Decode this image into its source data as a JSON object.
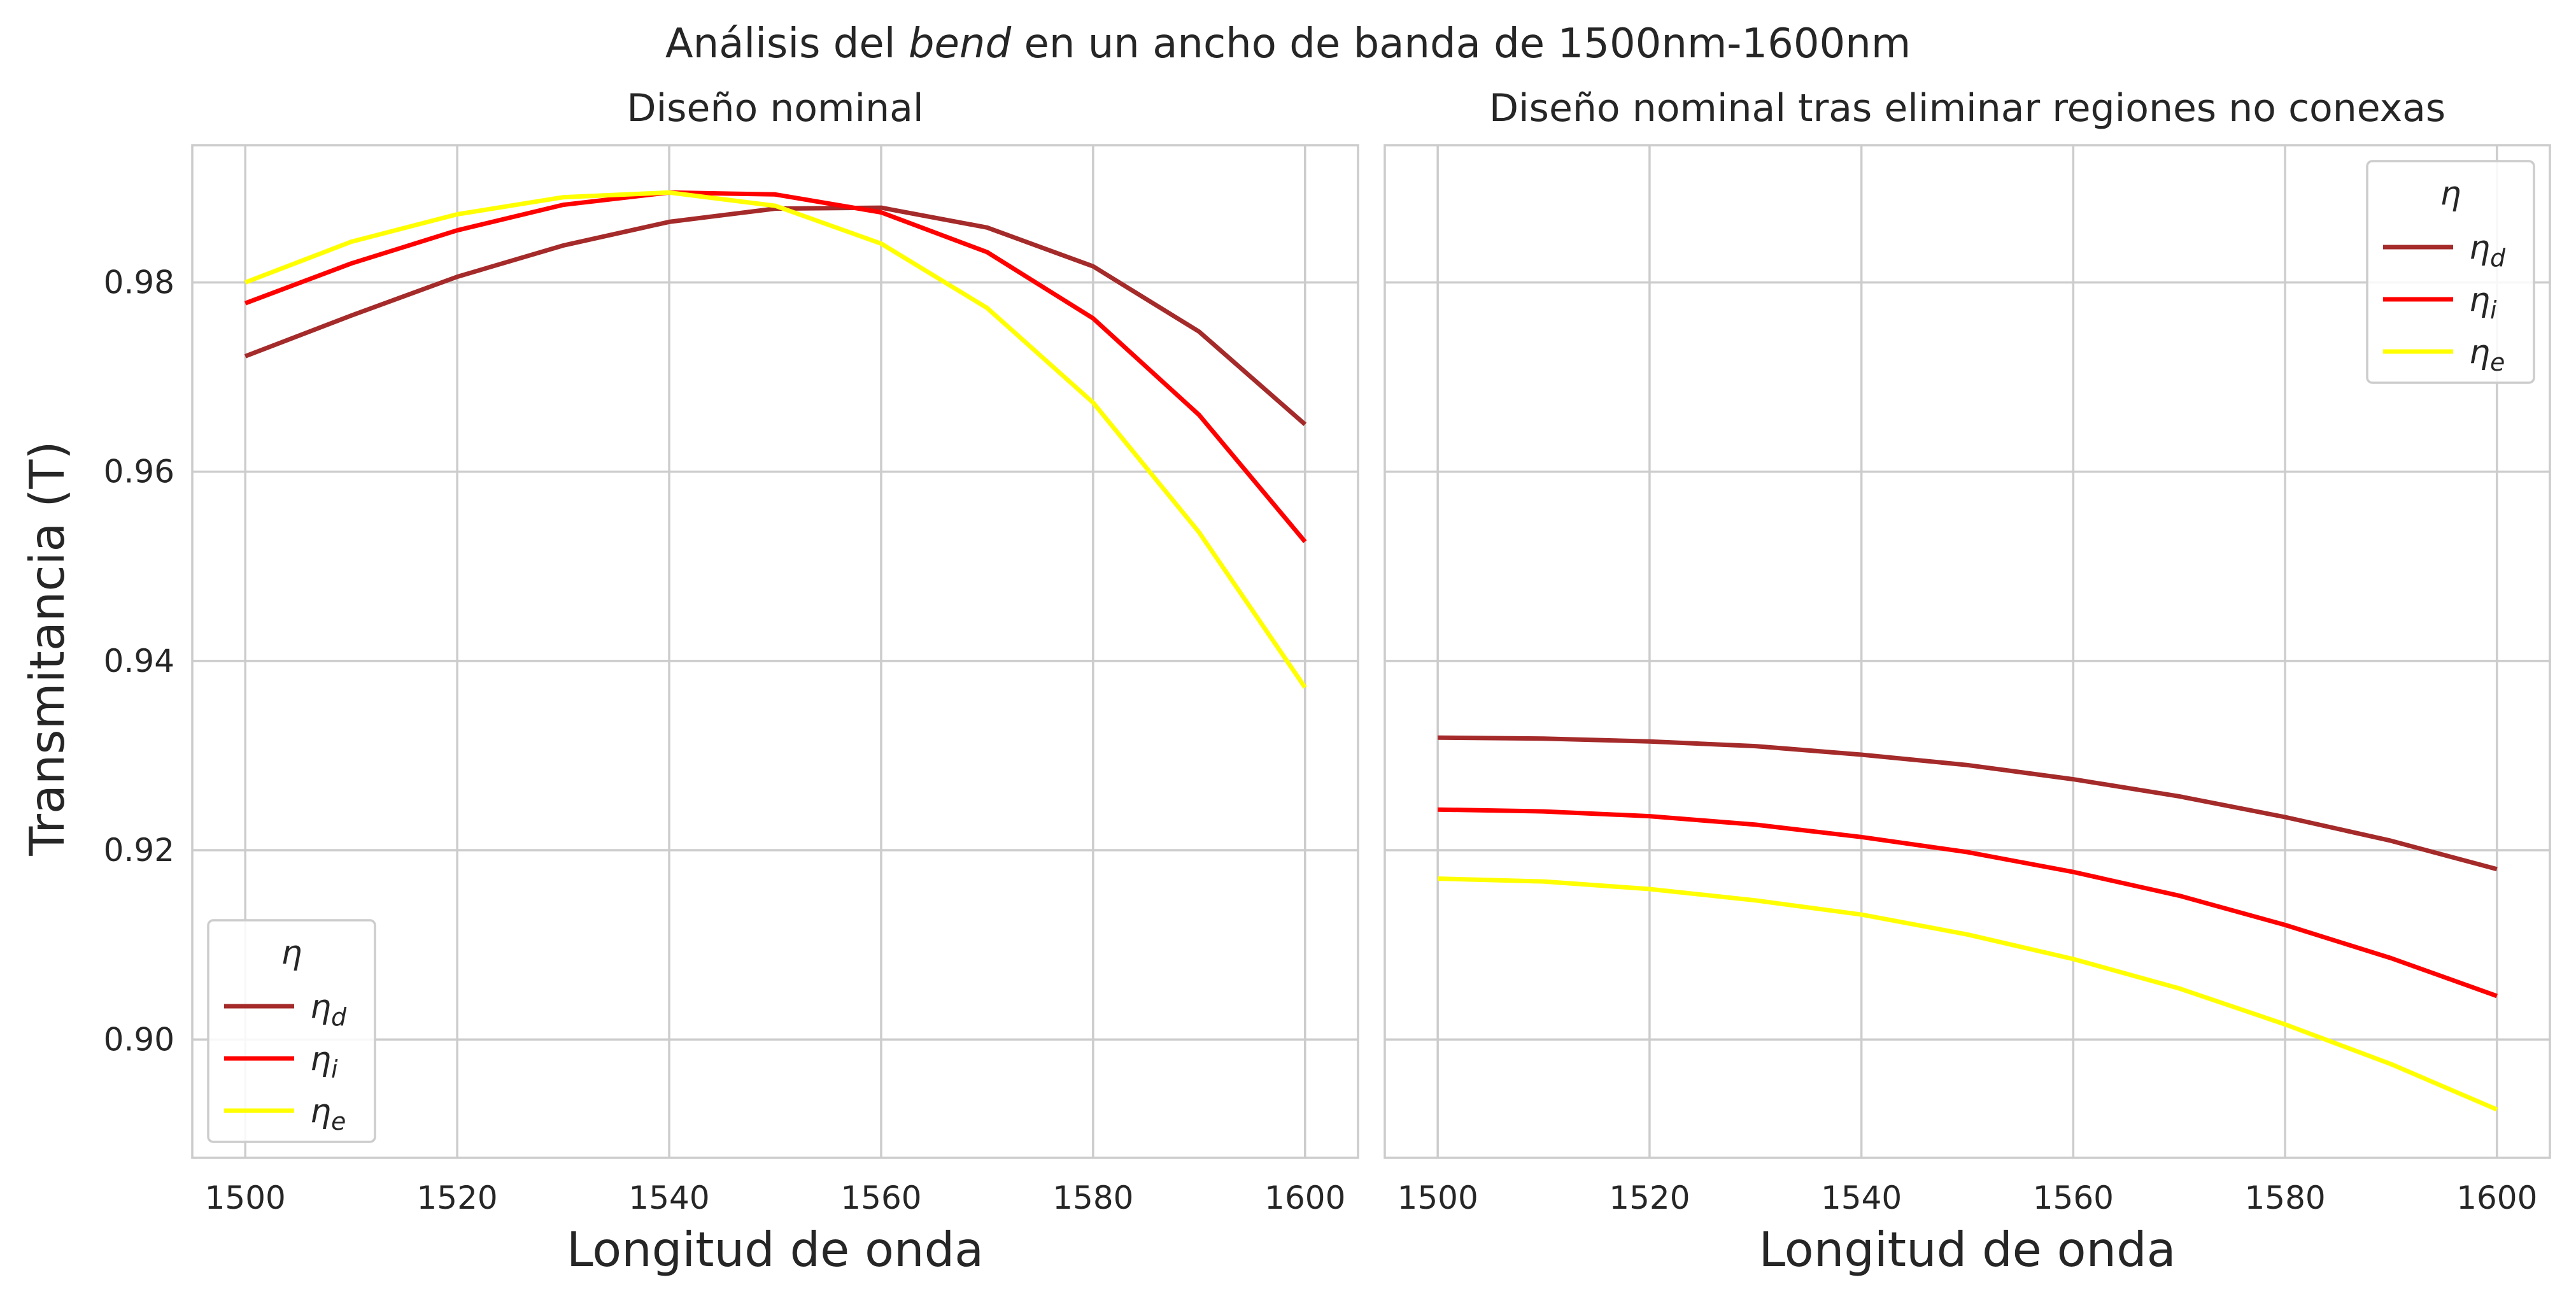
{
  "figure": {
    "title_prefix": "Análisis del ",
    "title_italic": "bend",
    "title_suffix": " en un ancho de banda de 1500nm-1600nm",
    "ylabel": "Transmitancia (T)"
  },
  "chart_data": [
    {
      "type": "line",
      "title": "Diseño nominal",
      "xlabel": "Longitud de onda",
      "ylabel": "Transmitancia (T)",
      "xlim": [
        1495,
        1605
      ],
      "ylim": [
        0.8875,
        0.9945
      ],
      "xticks": [
        1500,
        1520,
        1540,
        1560,
        1580,
        1600
      ],
      "yticks": [
        0.9,
        0.92,
        0.94,
        0.96,
        0.98
      ],
      "ytick_labels": [
        "0.90",
        "0.92",
        "0.94",
        "0.96",
        "0.98"
      ],
      "grid": true,
      "legend": {
        "title": "η",
        "placement": "lower-left"
      },
      "x": [
        1500,
        1510,
        1520,
        1530,
        1540,
        1550,
        1560,
        1570,
        1580,
        1590,
        1600
      ],
      "series": [
        {
          "name": "η",
          "sub": "d",
          "color": "#a52a2a",
          "values": [
            0.9722,
            0.9765,
            0.9806,
            0.9839,
            0.9864,
            0.9878,
            0.9879,
            0.9858,
            0.9817,
            0.9748,
            0.965
          ]
        },
        {
          "name": "η",
          "sub": "i",
          "color": "#ff0000",
          "values": [
            0.9778,
            0.982,
            0.9855,
            0.9882,
            0.9895,
            0.9893,
            0.9874,
            0.9832,
            0.9762,
            0.966,
            0.9526
          ]
        },
        {
          "name": "η",
          "sub": "e",
          "color": "#ffff00",
          "values": [
            0.98,
            0.9843,
            0.9872,
            0.989,
            0.9895,
            0.9881,
            0.9841,
            0.9773,
            0.9673,
            0.9536,
            0.9372
          ]
        }
      ]
    },
    {
      "type": "line",
      "title": "Diseño nominal tras eliminar regiones no conexas",
      "xlabel": "Longitud de onda",
      "ylabel": "",
      "xlim": [
        1495,
        1605
      ],
      "ylim": [
        0.8875,
        0.9945
      ],
      "xticks": [
        1500,
        1520,
        1540,
        1560,
        1580,
        1600
      ],
      "yticks": [
        0.9,
        0.92,
        0.94,
        0.96,
        0.98
      ],
      "ytick_labels": [],
      "grid": true,
      "legend": {
        "title": "η",
        "placement": "upper-right"
      },
      "x": [
        1500,
        1510,
        1520,
        1530,
        1540,
        1550,
        1560,
        1570,
        1580,
        1590,
        1600
      ],
      "series": [
        {
          "name": "η",
          "sub": "d",
          "color": "#a52a2a",
          "values": [
            0.9319,
            0.9318,
            0.9315,
            0.931,
            0.9301,
            0.929,
            0.9275,
            0.9257,
            0.9235,
            0.921,
            0.918
          ]
        },
        {
          "name": "η",
          "sub": "i",
          "color": "#ff0000",
          "values": [
            0.9243,
            0.9241,
            0.9236,
            0.9227,
            0.9214,
            0.9198,
            0.9177,
            0.9152,
            0.9121,
            0.9086,
            0.9046
          ]
        },
        {
          "name": "η",
          "sub": "e",
          "color": "#ffff00",
          "values": [
            0.917,
            0.9167,
            0.9159,
            0.9147,
            0.9132,
            0.9111,
            0.9085,
            0.9054,
            0.9016,
            0.8974,
            0.8926
          ]
        }
      ]
    }
  ]
}
